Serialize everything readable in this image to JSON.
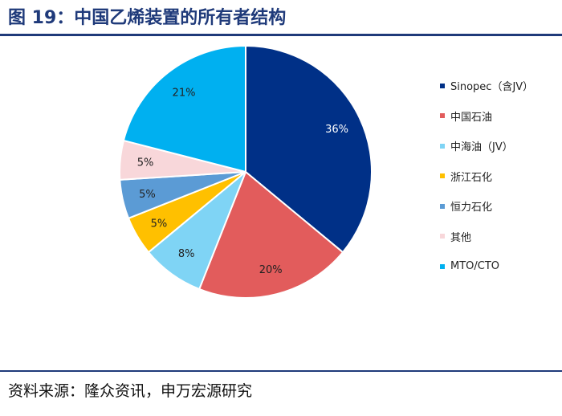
{
  "page": {
    "title": "图 19：中国乙烯装置的所有者结构",
    "source": "资料来源：隆众资讯，申万宏源研究",
    "accent_color": "#1f3a7a"
  },
  "chart_data": {
    "type": "pie",
    "title": "",
    "legend_position": "right",
    "slices": [
      {
        "name": "Sinopec（含JV）",
        "value": 36,
        "label": "36%",
        "color": "#003087",
        "label_color": "#ffffff"
      },
      {
        "name": "中国石油",
        "value": 20,
        "label": "20%",
        "color": "#e25c5c",
        "label_color": "#222222"
      },
      {
        "name": "中海油（JV）",
        "value": 8,
        "label": "8%",
        "color": "#7fd4f5",
        "label_color": "#222222"
      },
      {
        "name": "浙江石化",
        "value": 5,
        "label": "5%",
        "color": "#ffc000",
        "label_color": "#222222"
      },
      {
        "name": "恒力石化",
        "value": 5,
        "label": "5%",
        "color": "#5b9bd5",
        "label_color": "#222222"
      },
      {
        "name": "其他",
        "value": 5,
        "label": "5%",
        "color": "#f8d7da",
        "label_color": "#222222"
      },
      {
        "name": "MTO/CTO",
        "value": 21,
        "label": "21%",
        "color": "#00b0f0",
        "label_color": "#222222"
      }
    ]
  }
}
